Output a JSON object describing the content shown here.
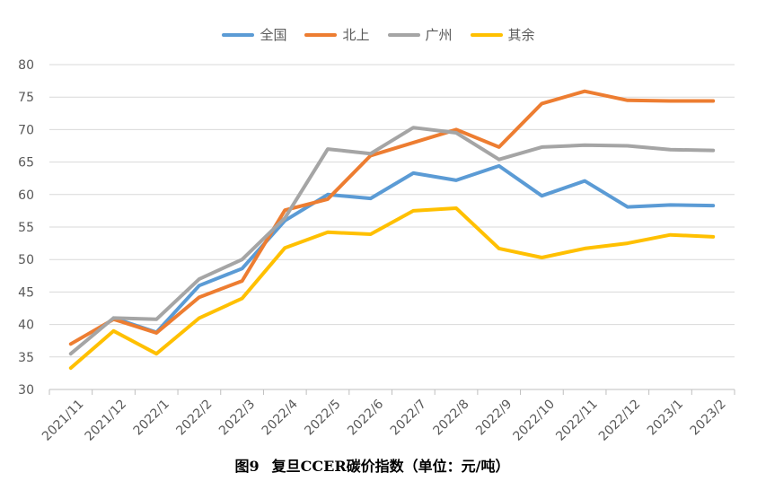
{
  "chart_data": {
    "type": "line",
    "title": "",
    "xlabel": "",
    "ylabel": "",
    "ylim": [
      30,
      80
    ],
    "yticks": [
      30,
      35,
      40,
      45,
      50,
      55,
      60,
      65,
      70,
      75,
      80
    ],
    "grid": true,
    "legend": "top-center",
    "categories": [
      "2021/11",
      "2021/12",
      "2022/1",
      "2022/2",
      "2022/3",
      "2022/4",
      "2022/5",
      "2022/6",
      "2022/7",
      "2022/8",
      "2022/9",
      "2022/10",
      "2022/11",
      "2022/12",
      "2023/1",
      "2023/2"
    ],
    "series": [
      {
        "name": "全国",
        "color": "#5B9BD5",
        "values": [
          null,
          41.0,
          38.8,
          46.0,
          48.6,
          56.0,
          60.0,
          59.4,
          63.3,
          62.2,
          64.4,
          59.8,
          62.1,
          58.1,
          58.4,
          58.3
        ]
      },
      {
        "name": "北上",
        "color": "#ED7D31",
        "values": [
          37.0,
          40.8,
          38.7,
          44.2,
          46.7,
          57.6,
          59.3,
          66.0,
          68.0,
          70.0,
          67.3,
          74.0,
          75.9,
          74.5,
          74.4,
          74.4
        ]
      },
      {
        "name": "广州",
        "color": "#A5A5A5",
        "values": [
          35.5,
          41.0,
          40.8,
          47.0,
          50.0,
          56.4,
          67.0,
          66.3,
          70.3,
          69.5,
          65.4,
          67.3,
          67.6,
          67.5,
          66.9,
          66.8
        ]
      },
      {
        "name": "其余",
        "color": "#FFC000",
        "values": [
          33.3,
          39.0,
          35.5,
          41.0,
          44.0,
          51.8,
          54.2,
          53.9,
          57.5,
          57.9,
          51.7,
          50.3,
          51.7,
          52.5,
          53.8,
          53.5
        ]
      }
    ]
  },
  "caption": {
    "figure_number": "图9",
    "text": "复旦CCER碳价指数（单位：元/吨）"
  }
}
